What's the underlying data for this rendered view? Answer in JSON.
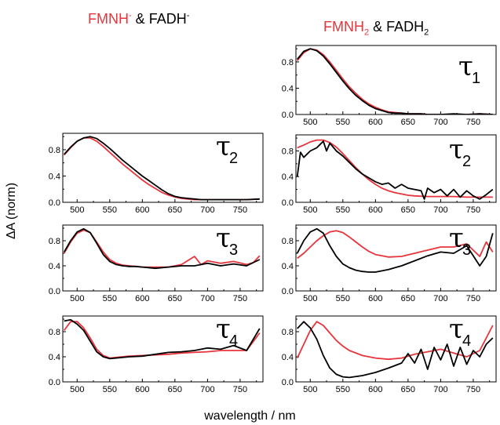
{
  "figure": {
    "titles": {
      "left": {
        "part1": "FMNH",
        "sup1": "-",
        "amp": " & ",
        "part2": "FADH",
        "sup2": "-"
      },
      "right": {
        "part1": "FMNH",
        "sub1": "2",
        "amp": " & ",
        "part2": "FADH",
        "sub2": "2"
      }
    },
    "ylabel": "ΔA (norm)",
    "xlabel": "wavelength / nm",
    "colors": {
      "red": "#e8343c",
      "black": "#000000"
    }
  },
  "chart_data": [
    {
      "type": "line",
      "panel": "left-tau2",
      "label": "τ2",
      "label_base": "τ",
      "label_sub": "2",
      "xlim": [
        478,
        785
      ],
      "ylim": [
        0,
        1.05
      ],
      "xticks": [
        500,
        550,
        600,
        650,
        700,
        750
      ],
      "yticks": [
        0.0,
        0.4,
        0.8
      ],
      "series": [
        {
          "color": "red",
          "x": [
            480,
            490,
            500,
            510,
            520,
            530,
            540,
            550,
            560,
            570,
            580,
            590,
            600,
            610,
            620,
            630,
            640,
            650,
            660,
            670,
            680,
            690,
            700,
            720,
            740,
            760,
            780
          ],
          "y": [
            0.72,
            0.83,
            0.93,
            0.98,
            0.98,
            0.93,
            0.85,
            0.76,
            0.67,
            0.58,
            0.5,
            0.42,
            0.34,
            0.27,
            0.21,
            0.15,
            0.11,
            0.08,
            0.06,
            0.05,
            0.04,
            0.04,
            0.04,
            0.04,
            0.04,
            0.04,
            0.05
          ]
        },
        {
          "color": "black",
          "x": [
            480,
            490,
            500,
            510,
            520,
            530,
            540,
            550,
            560,
            570,
            580,
            590,
            600,
            610,
            620,
            630,
            640,
            650,
            660,
            670,
            680,
            690,
            700,
            720,
            740,
            760,
            780
          ],
          "y": [
            0.73,
            0.84,
            0.93,
            0.98,
            1.0,
            0.97,
            0.9,
            0.82,
            0.73,
            0.64,
            0.56,
            0.48,
            0.4,
            0.33,
            0.26,
            0.19,
            0.13,
            0.09,
            0.07,
            0.06,
            0.05,
            0.04,
            0.04,
            0.04,
            0.04,
            0.04,
            0.05
          ]
        }
      ]
    },
    {
      "type": "line",
      "panel": "left-tau3",
      "label": "τ3",
      "label_base": "τ",
      "label_sub": "3",
      "xlim": [
        478,
        785
      ],
      "ylim": [
        0,
        1.05
      ],
      "xticks": [
        500,
        550,
        600,
        650,
        700,
        750
      ],
      "yticks": [
        0.0,
        0.4,
        0.8
      ],
      "series": [
        {
          "color": "red",
          "x": [
            480,
            490,
            500,
            510,
            520,
            530,
            540,
            550,
            560,
            570,
            580,
            590,
            600,
            620,
            640,
            660,
            680,
            690,
            700,
            720,
            740,
            760,
            770,
            780
          ],
          "y": [
            0.6,
            0.78,
            0.92,
            0.97,
            0.93,
            0.78,
            0.62,
            0.5,
            0.44,
            0.41,
            0.4,
            0.39,
            0.38,
            0.38,
            0.38,
            0.42,
            0.55,
            0.42,
            0.48,
            0.44,
            0.47,
            0.42,
            0.45,
            0.56
          ]
        },
        {
          "color": "black",
          "x": [
            480,
            490,
            500,
            510,
            520,
            530,
            540,
            550,
            560,
            570,
            580,
            590,
            600,
            620,
            640,
            660,
            680,
            700,
            720,
            740,
            760,
            780
          ],
          "y": [
            0.62,
            0.8,
            0.94,
            0.99,
            0.93,
            0.76,
            0.58,
            0.47,
            0.42,
            0.4,
            0.39,
            0.39,
            0.38,
            0.36,
            0.38,
            0.4,
            0.4,
            0.44,
            0.4,
            0.43,
            0.4,
            0.5
          ]
        }
      ]
    },
    {
      "type": "line",
      "panel": "left-tau4",
      "label": "τ4",
      "label_base": "τ",
      "label_sub": "4",
      "xlim": [
        478,
        785
      ],
      "ylim": [
        0,
        1.05
      ],
      "xticks": [
        500,
        550,
        600,
        650,
        700,
        750
      ],
      "yticks": [
        0.0,
        0.4,
        0.8
      ],
      "series": [
        {
          "color": "red",
          "x": [
            480,
            490,
            500,
            510,
            520,
            530,
            540,
            550,
            560,
            580,
            600,
            620,
            640,
            660,
            680,
            700,
            720,
            740,
            760,
            780
          ],
          "y": [
            0.82,
            0.96,
            0.96,
            0.86,
            0.7,
            0.52,
            0.42,
            0.38,
            0.39,
            0.41,
            0.42,
            0.43,
            0.44,
            0.46,
            0.47,
            0.48,
            0.5,
            0.5,
            0.5,
            0.78
          ]
        },
        {
          "color": "black",
          "x": [
            480,
            490,
            500,
            510,
            520,
            530,
            540,
            550,
            560,
            580,
            600,
            620,
            640,
            660,
            680,
            700,
            720,
            740,
            760,
            780
          ],
          "y": [
            0.97,
            0.99,
            0.92,
            0.82,
            0.65,
            0.48,
            0.4,
            0.37,
            0.38,
            0.4,
            0.41,
            0.44,
            0.47,
            0.48,
            0.5,
            0.54,
            0.52,
            0.58,
            0.5,
            0.85
          ]
        }
      ]
    },
    {
      "type": "line",
      "panel": "right-tau1",
      "label": "τ1",
      "label_base": "τ",
      "label_sub": "1",
      "xlim": [
        478,
        785
      ],
      "ylim": [
        0,
        1.05
      ],
      "xticks": [
        500,
        550,
        600,
        650,
        700,
        750
      ],
      "yticks": [
        0.0,
        0.4,
        0.8
      ],
      "series": [
        {
          "color": "red",
          "x": [
            480,
            490,
            500,
            510,
            520,
            530,
            540,
            550,
            560,
            570,
            580,
            590,
            600,
            610,
            620,
            630,
            640,
            650,
            660,
            670,
            680,
            700,
            720,
            740,
            760,
            780
          ],
          "y": [
            0.82,
            0.94,
            1.0,
            0.98,
            0.91,
            0.8,
            0.67,
            0.54,
            0.42,
            0.32,
            0.23,
            0.16,
            0.11,
            0.07,
            0.04,
            0.03,
            0.02,
            0.01,
            0.01,
            0.01,
            0.0,
            0.0,
            0.0,
            0.0,
            0.01,
            0.0
          ]
        },
        {
          "color": "black",
          "x": [
            480,
            490,
            500,
            510,
            520,
            530,
            540,
            550,
            560,
            570,
            580,
            590,
            600,
            610,
            620,
            630,
            640,
            650,
            660,
            670,
            680,
            700,
            720,
            740,
            760,
            780
          ],
          "y": [
            0.84,
            0.96,
            1.0,
            0.97,
            0.89,
            0.77,
            0.64,
            0.51,
            0.39,
            0.29,
            0.21,
            0.14,
            0.09,
            0.06,
            0.03,
            0.02,
            0.02,
            0.01,
            0.01,
            0.01,
            0.0,
            0.0,
            0.01,
            0.0,
            0.01,
            0.0
          ]
        }
      ]
    },
    {
      "type": "line",
      "panel": "right-tau2",
      "label": "τ2",
      "label_base": "τ",
      "label_sub": "2",
      "xlim": [
        478,
        785
      ],
      "ylim": [
        0,
        1.05
      ],
      "xticks": [
        500,
        550,
        600,
        650,
        700,
        750
      ],
      "yticks": [
        0.0,
        0.4,
        0.8
      ],
      "series": [
        {
          "color": "red",
          "x": [
            480,
            490,
            500,
            510,
            520,
            530,
            540,
            550,
            560,
            570,
            580,
            590,
            600,
            610,
            620,
            630,
            640,
            650,
            660,
            680,
            700,
            720,
            740,
            760,
            780
          ],
          "y": [
            0.85,
            0.89,
            0.94,
            0.97,
            0.97,
            0.93,
            0.86,
            0.76,
            0.65,
            0.54,
            0.44,
            0.35,
            0.28,
            0.22,
            0.18,
            0.15,
            0.13,
            0.11,
            0.1,
            0.09,
            0.09,
            0.09,
            0.08,
            0.08,
            0.08
          ]
        },
        {
          "color": "black",
          "x": [
            480,
            485,
            490,
            500,
            510,
            520,
            525,
            530,
            540,
            550,
            560,
            570,
            580,
            590,
            600,
            610,
            620,
            630,
            640,
            650,
            660,
            670,
            675,
            680,
            690,
            700,
            710,
            720,
            730,
            740,
            750,
            760,
            770,
            780
          ],
          "y": [
            0.4,
            0.78,
            0.7,
            0.8,
            0.85,
            0.95,
            0.8,
            0.92,
            0.8,
            0.72,
            0.62,
            0.52,
            0.44,
            0.38,
            0.32,
            0.28,
            0.3,
            0.22,
            0.28,
            0.22,
            0.2,
            0.18,
            0.05,
            0.22,
            0.15,
            0.2,
            0.1,
            0.2,
            0.08,
            0.18,
            0.1,
            0.05,
            0.12,
            0.2
          ]
        }
      ]
    },
    {
      "type": "line",
      "panel": "right-tau3",
      "label": "τ3",
      "label_base": "τ",
      "label_sub": "3",
      "xlim": [
        478,
        785
      ],
      "ylim": [
        0,
        1.05
      ],
      "xticks": [
        500,
        550,
        600,
        650,
        700,
        750
      ],
      "yticks": [
        0.0,
        0.4,
        0.8
      ],
      "series": [
        {
          "color": "red",
          "x": [
            480,
            490,
            500,
            510,
            520,
            530,
            540,
            550,
            560,
            570,
            580,
            590,
            600,
            620,
            640,
            660,
            680,
            700,
            720,
            740,
            760,
            770,
            780
          ],
          "y": [
            0.52,
            0.6,
            0.7,
            0.8,
            0.88,
            0.94,
            0.96,
            0.93,
            0.86,
            0.78,
            0.7,
            0.63,
            0.58,
            0.54,
            0.55,
            0.6,
            0.65,
            0.7,
            0.7,
            0.75,
            0.55,
            0.78,
            0.62
          ]
        },
        {
          "color": "black",
          "x": [
            480,
            490,
            500,
            510,
            520,
            530,
            540,
            550,
            560,
            570,
            580,
            590,
            600,
            620,
            640,
            660,
            680,
            700,
            720,
            740,
            760,
            770,
            780
          ],
          "y": [
            0.6,
            0.8,
            0.94,
            0.99,
            0.92,
            0.72,
            0.55,
            0.43,
            0.37,
            0.33,
            0.31,
            0.3,
            0.3,
            0.34,
            0.4,
            0.48,
            0.56,
            0.62,
            0.6,
            0.72,
            0.4,
            0.55,
            0.92
          ]
        }
      ]
    },
    {
      "type": "line",
      "panel": "right-tau4",
      "label": "τ4",
      "label_base": "τ",
      "label_sub": "4",
      "xlim": [
        478,
        785
      ],
      "ylim": [
        0,
        1.05
      ],
      "xticks": [
        500,
        550,
        600,
        650,
        700,
        750
      ],
      "yticks": [
        0.0,
        0.4,
        0.8
      ],
      "series": [
        {
          "color": "red",
          "x": [
            480,
            490,
            500,
            510,
            520,
            530,
            540,
            550,
            560,
            580,
            600,
            620,
            640,
            660,
            680,
            700,
            720,
            740,
            760,
            780
          ],
          "y": [
            0.38,
            0.6,
            0.82,
            0.96,
            0.9,
            0.78,
            0.66,
            0.57,
            0.5,
            0.42,
            0.38,
            0.36,
            0.38,
            0.44,
            0.48,
            0.52,
            0.46,
            0.4,
            0.5,
            0.9
          ]
        },
        {
          "color": "black",
          "x": [
            480,
            490,
            500,
            510,
            520,
            530,
            540,
            550,
            560,
            580,
            600,
            620,
            640,
            650,
            660,
            670,
            680,
            690,
            700,
            710,
            720,
            730,
            740,
            750,
            760,
            770,
            780
          ],
          "y": [
            0.85,
            0.96,
            0.86,
            0.68,
            0.42,
            0.22,
            0.12,
            0.08,
            0.07,
            0.1,
            0.15,
            0.22,
            0.3,
            0.45,
            0.3,
            0.52,
            0.2,
            0.55,
            0.35,
            0.6,
            0.25,
            0.55,
            0.28,
            0.5,
            0.4,
            0.6,
            0.7
          ]
        }
      ]
    }
  ]
}
